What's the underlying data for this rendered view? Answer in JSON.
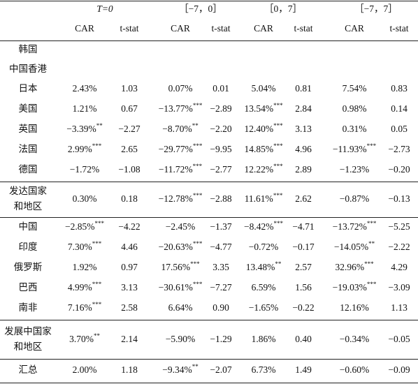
{
  "table": {
    "groups": [
      "T=0",
      "［−7，0］",
      "［0，7］",
      "［−7，7］"
    ],
    "subheaders": [
      "CAR",
      "t-stat",
      "CAR",
      "t-stat",
      "CAR",
      "t-stat",
      "CAR",
      "t-stat"
    ],
    "rows": [
      {
        "label": [
          "韩国"
        ],
        "cells": []
      },
      {
        "label": [
          "中国香港"
        ],
        "cells": []
      },
      {
        "label": [
          "日本"
        ],
        "cells": [
          "2.43%",
          "1.03",
          "0.07%",
          "0.01",
          "5.04%",
          "0.81",
          "7.54%",
          "0.83"
        ]
      },
      {
        "label": [
          "美国"
        ],
        "cells": [
          "1.21%",
          "0.67",
          {
            "text": "−13.77%",
            "sig": "***"
          },
          "−2.89",
          {
            "text": "13.54%",
            "sig": "***"
          },
          "2.84",
          "0.98%",
          "0.14"
        ]
      },
      {
        "label": [
          "英国"
        ],
        "cells": [
          {
            "text": "−3.39%",
            "sig": "**"
          },
          "−2.27",
          {
            "text": "−8.70%",
            "sig": "**"
          },
          "−2.20",
          {
            "text": "12.40%",
            "sig": "***"
          },
          "3.13",
          "0.31%",
          "0.05"
        ]
      },
      {
        "label": [
          "法国"
        ],
        "cells": [
          {
            "text": "2.99%",
            "sig": "***"
          },
          "2.65",
          {
            "text": "−29.77%",
            "sig": "***"
          },
          "−9.95",
          {
            "text": "14.85%",
            "sig": "***"
          },
          "4.96",
          {
            "text": "−11.93%",
            "sig": "***"
          },
          "−2.73"
        ]
      },
      {
        "label": [
          "德国"
        ],
        "cells": [
          "−1.72%",
          "−1.08",
          {
            "text": "−11.72%",
            "sig": "***"
          },
          "−2.77",
          {
            "text": "12.22%",
            "sig": "***"
          },
          "2.89",
          "−1.23%",
          "−0.20"
        ]
      },
      {
        "label": [
          "发达国家",
          "和地区"
        ],
        "cells": [
          "0.30%",
          "0.18",
          {
            "text": "−12.78%",
            "sig": "***"
          },
          "−2.88",
          {
            "text": "11.61%",
            "sig": "***"
          },
          "2.62",
          "−0.87%",
          "−0.13"
        ]
      },
      {
        "label": [
          "中国"
        ],
        "cells": [
          {
            "text": "−2.85%",
            "sig": "***"
          },
          "−4.22",
          "−2.45%",
          "−1.37",
          {
            "text": "−8.42%",
            "sig": "***"
          },
          "−4.71",
          {
            "text": "−13.72%",
            "sig": "***"
          },
          "−5.25"
        ]
      },
      {
        "label": [
          "印度"
        ],
        "cells": [
          {
            "text": "7.30%",
            "sig": "***"
          },
          "4.46",
          {
            "text": "−20.63%",
            "sig": "***"
          },
          "−4.77",
          "−0.72%",
          "−0.17",
          {
            "text": "−14.05%",
            "sig": "**"
          },
          "−2.22"
        ]
      },
      {
        "label": [
          "俄罗斯"
        ],
        "cells": [
          "1.92%",
          "0.97",
          {
            "text": "17.56%",
            "sig": "***"
          },
          "3.35",
          {
            "text": "13.48%",
            "sig": "**"
          },
          "2.57",
          {
            "text": "32.96%",
            "sig": "***"
          },
          "4.29"
        ]
      },
      {
        "label": [
          "巴西"
        ],
        "cells": [
          {
            "text": "4.99%",
            "sig": "***"
          },
          "3.13",
          {
            "text": "−30.61%",
            "sig": "***"
          },
          "−7.27",
          "6.59%",
          "1.56",
          {
            "text": "−19.03%",
            "sig": "***"
          },
          "−3.09"
        ]
      },
      {
        "label": [
          "南非"
        ],
        "cells": [
          {
            "text": "7.16%",
            "sig": "***"
          },
          "2.58",
          "6.64%",
          "0.90",
          "−1.65%",
          "−0.22",
          "12.16%",
          "1.13"
        ]
      },
      {
        "label": [
          "发展中国家",
          "和地区"
        ],
        "cells": [
          {
            "text": "3.70%",
            "sig": "**"
          },
          "2.14",
          "−5.90%",
          "−1.29",
          "1.86%",
          "0.40",
          "−0.34%",
          "−0.05"
        ]
      },
      {
        "label": [
          "汇总"
        ],
        "cells": [
          "2.00%",
          "1.18",
          {
            "text": "−9.34%",
            "sig": "**"
          },
          "−2.07",
          "6.73%",
          "1.49",
          "−0.60%",
          "−0.09"
        ]
      }
    ]
  }
}
